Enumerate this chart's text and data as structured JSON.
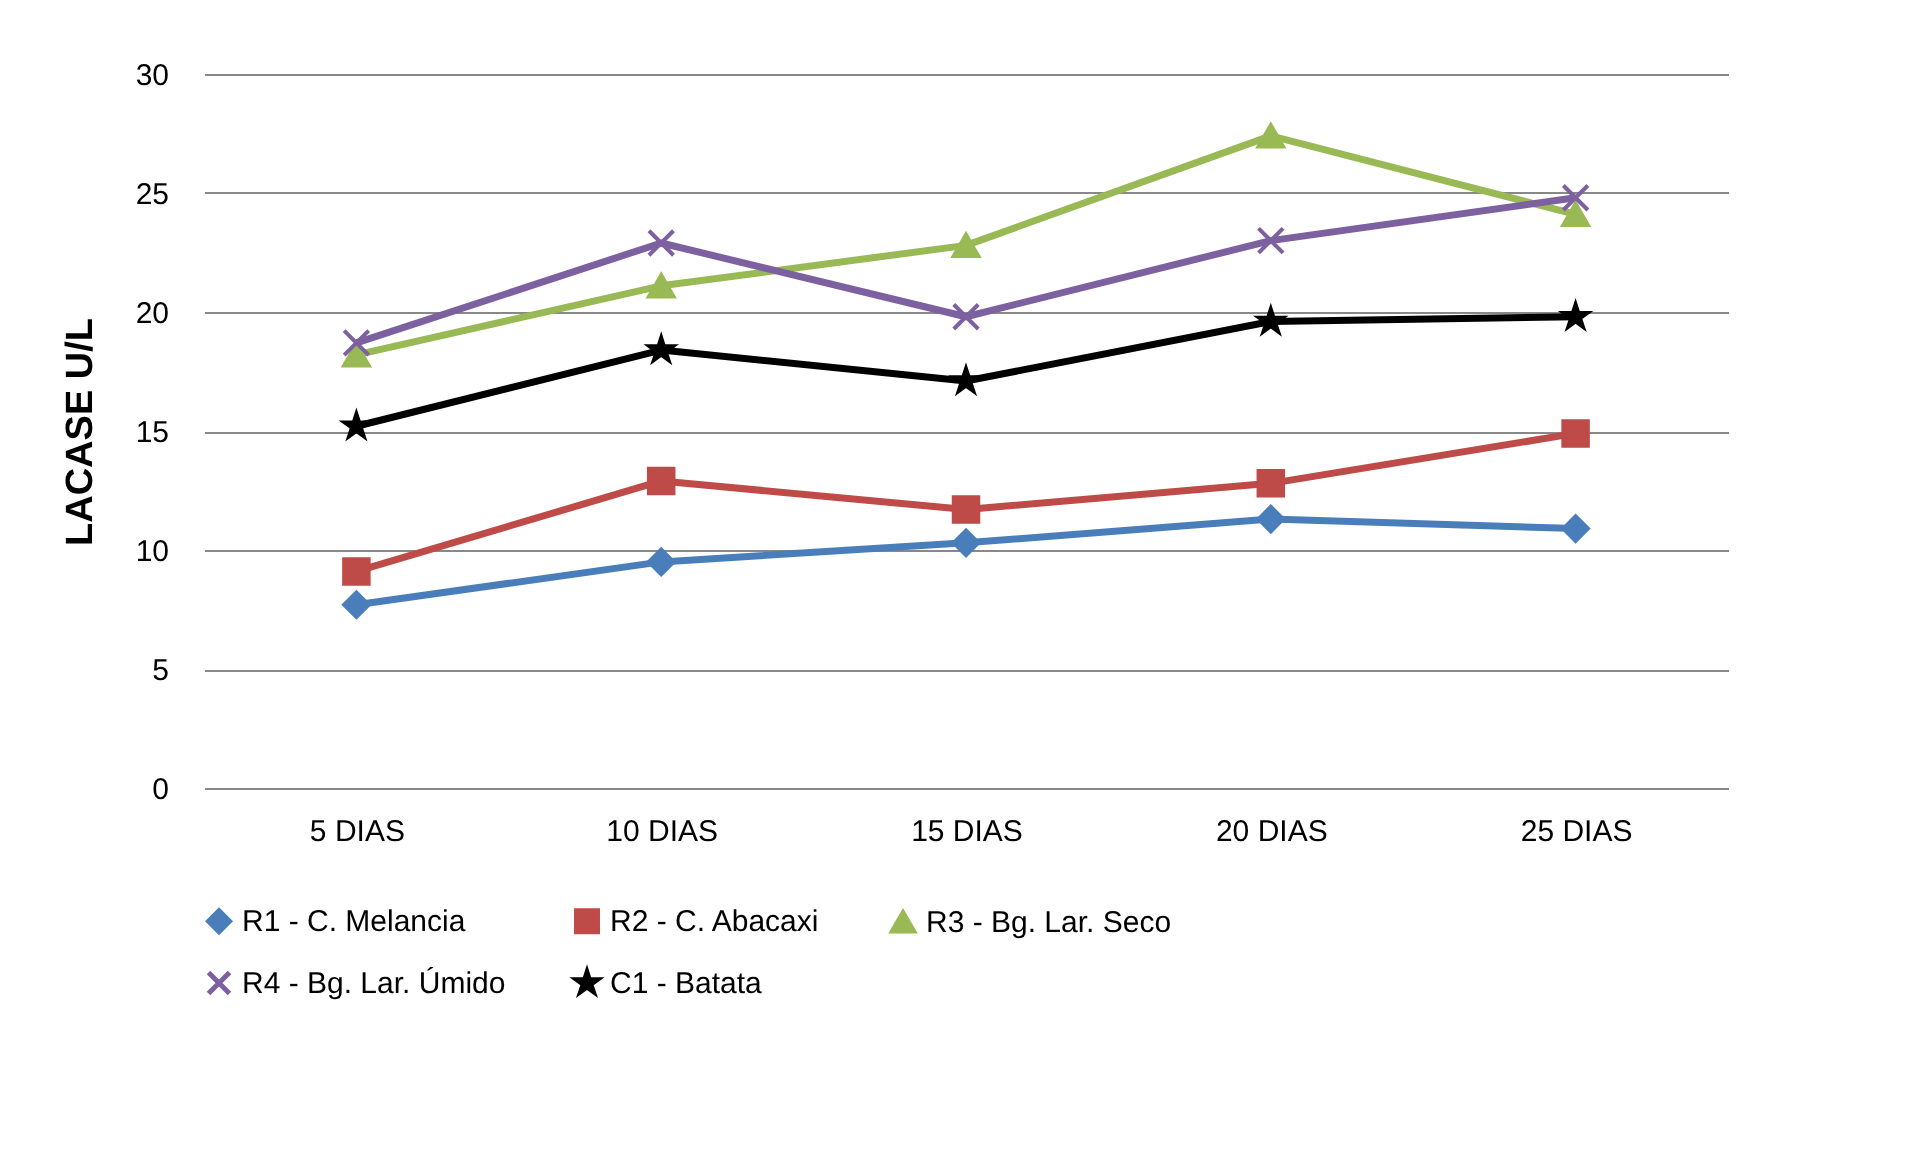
{
  "chart_data": {
    "type": "line",
    "ylabel": "LACASE U/L",
    "categories": [
      "5 DIAS",
      "10 DIAS",
      "15 DIAS",
      "20 DIAS",
      "25 DIAS"
    ],
    "ylim": [
      0,
      30
    ],
    "yticks": [
      0,
      5,
      10,
      15,
      20,
      25,
      30
    ],
    "grid": "y",
    "legend": "bottom",
    "line_style": "solid",
    "series": [
      {
        "name": "R1 - C. Melancia",
        "color": "#4a7ebb",
        "marker": "diamond",
        "values": [
          7.7,
          9.5,
          10.3,
          11.3,
          10.9
        ]
      },
      {
        "name": "R2 - C. Abacaxi",
        "color": "#be4b48",
        "marker": "square",
        "values": [
          9.1,
          12.9,
          11.7,
          12.8,
          14.9
        ]
      },
      {
        "name": "R3 - Bg. Lar. Seco",
        "color": "#98b954",
        "marker": "triangle",
        "values": [
          18.2,
          21.1,
          22.8,
          27.4,
          24.1
        ]
      },
      {
        "name": "R4 - Bg. Lar. Úmido",
        "color": "#7d60a0",
        "marker": "cross",
        "values": [
          18.7,
          22.9,
          19.8,
          23.0,
          24.8
        ]
      },
      {
        "name": "C1 - Batata",
        "color": "#000000",
        "marker": "star",
        "values": [
          15.2,
          18.4,
          17.1,
          19.6,
          19.8
        ]
      }
    ]
  }
}
